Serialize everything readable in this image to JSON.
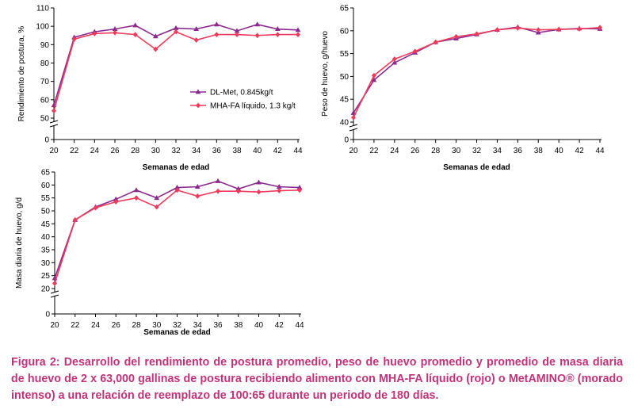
{
  "chart_data": [
    {
      "type": "line",
      "id": "chart-postura",
      "xlabel": "Semanas de edad",
      "ylabel": "Rendimiento de postura, %",
      "x": [
        20,
        22,
        24,
        26,
        28,
        30,
        32,
        34,
        36,
        38,
        40,
        42,
        44
      ],
      "xticks": [
        "20",
        "22",
        "24",
        "26",
        "28",
        "30",
        "32",
        "34",
        "36",
        "38",
        "40",
        "42",
        "44"
      ],
      "ylim": [
        0,
        110
      ],
      "yticks": [
        "0",
        "50",
        "60",
        "70",
        "80",
        "90",
        "100",
        "110"
      ],
      "axis_break": true,
      "legend_position": "center-right",
      "series": [
        {
          "name": "DL-Met, 0.845kg/t",
          "color": "#8b2a8e",
          "marker": "triangle",
          "values": [
            57,
            94,
            97,
            98.5,
            100.5,
            94.5,
            99,
            98.5,
            101,
            97.5,
            101,
            98.5,
            98
          ]
        },
        {
          "name": "MHA-FA líquido, 1.3 kg/t",
          "color": "#ee3b5b",
          "marker": "diamond",
          "values": [
            54,
            93,
            96,
            96.5,
            95.5,
            87.5,
            97,
            92.5,
            95.5,
            95.5,
            95,
            95.5,
            95.5
          ]
        }
      ]
    },
    {
      "type": "line",
      "id": "chart-peso",
      "xlabel": "Semanas de edad",
      "ylabel": "Peso de huevo, g/huevo",
      "x": [
        20,
        22,
        24,
        26,
        28,
        30,
        32,
        34,
        36,
        38,
        40,
        42,
        44
      ],
      "xticks": [
        "20",
        "22",
        "24",
        "26",
        "28",
        "30",
        "32",
        "34",
        "36",
        "38",
        "40",
        "42",
        "44"
      ],
      "ylim": [
        0,
        65
      ],
      "yticks": [
        "0",
        "40",
        "45",
        "50",
        "55",
        "60",
        "65"
      ],
      "axis_break": true,
      "series": [
        {
          "name": "DL-Met",
          "color": "#8b2a8e",
          "marker": "triangle",
          "values": [
            42,
            49.2,
            53,
            55.2,
            57.5,
            58.3,
            59.2,
            60.2,
            60.8,
            59.6,
            60.3,
            60.5,
            60.4
          ]
        },
        {
          "name": "MHA-FA",
          "color": "#ee3b5b",
          "marker": "diamond",
          "values": [
            41,
            50.2,
            53.8,
            55.5,
            57.5,
            58.7,
            59.3,
            60.2,
            60.6,
            60.2,
            60.3,
            60.4,
            60.7
          ]
        }
      ]
    },
    {
      "type": "line",
      "id": "chart-masa",
      "xlabel": "Semanas de edad",
      "ylabel": "Masa diaria de huevo, g/d",
      "x": [
        20,
        22,
        24,
        26,
        28,
        30,
        32,
        34,
        36,
        38,
        40,
        42,
        44
      ],
      "xticks": [
        "20",
        "22",
        "24",
        "26",
        "28",
        "30",
        "32",
        "34",
        "36",
        "38",
        "40",
        "42",
        "44"
      ],
      "ylim": [
        0,
        65
      ],
      "yticks": [
        "0",
        "20",
        "25",
        "30",
        "35",
        "40",
        "45",
        "50",
        "55",
        "60",
        "65"
      ],
      "axis_break": true,
      "series": [
        {
          "name": "DL-Met",
          "color": "#8b2a8e",
          "marker": "triangle",
          "values": [
            24,
            46.5,
            51.5,
            54.5,
            58,
            55,
            59,
            59.3,
            61.5,
            58.5,
            61,
            59.3,
            59
          ]
        },
        {
          "name": "MHA-FA",
          "color": "#ee3b5b",
          "marker": "diamond",
          "values": [
            22,
            46.5,
            51.2,
            53.5,
            55,
            51.5,
            58,
            55.7,
            57.6,
            57.6,
            57.3,
            57.8,
            58
          ]
        }
      ]
    }
  ],
  "caption": "Figura 2: Desarrollo del rendimiento de postura promedio, peso de huevo promedio y promedio de masa diaria de huevo de 2 x 63,000 gallinas de postura recibiendo alimento con MHA-FA líquido (rojo) o MetAMINO® (morado intenso) a una relación de reemplazo de 100:65 durante un periodo de 180 días."
}
